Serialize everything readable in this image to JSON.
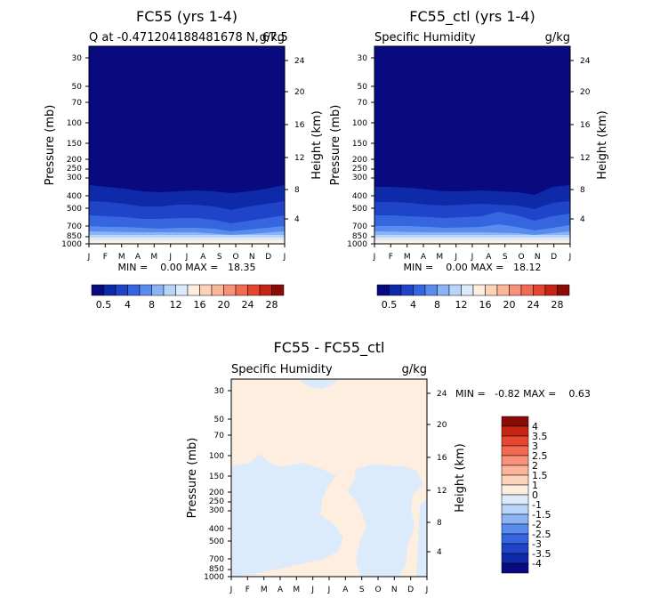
{
  "months": [
    "J",
    "F",
    "M",
    "A",
    "M",
    "J",
    "J",
    "A",
    "S",
    "O",
    "N",
    "D",
    "J"
  ],
  "pressure_ticks": [
    "30",
    "50",
    "70",
    "100",
    "150",
    "200",
    "250",
    "300",
    "400",
    "500",
    "700",
    "850",
    "1000"
  ],
  "height_ticks": [
    "24",
    "20",
    "16",
    "12",
    "8",
    "4"
  ],
  "y_label": "Pressure (mb)",
  "y2_label": "Height (km)",
  "panels": [
    {
      "title": "FC55 (yrs 1-4)",
      "left_label": "Q at -0.471204188481678 N, 67.5",
      "right_label": "g/kg",
      "min_max": "MIN =    0.00 MAX =   18.35"
    },
    {
      "title": "FC55_ctl (yrs 1-4)",
      "left_label": "Specific Humidity",
      "right_label": "g/kg",
      "min_max": "MIN =    0.00 MAX =   18.12"
    },
    {
      "title": "FC55 - FC55_ctl",
      "left_label": "Specific Humidity",
      "right_label": "g/kg",
      "min_max": "MIN =   -0.82 MAX =    0.63"
    }
  ],
  "colorbar_h": {
    "colors": [
      "#0a0a80",
      "#0e2aa8",
      "#1f44c8",
      "#3566e0",
      "#5a8cf0",
      "#8cb4f5",
      "#b8d4f8",
      "#dcebfb",
      "#fdeee0",
      "#fcd2b8",
      "#fbb59a",
      "#f8907a",
      "#f26a52",
      "#e64530",
      "#c82414",
      "#8a0c08"
    ],
    "labels": [
      "0.5",
      "4",
      "8",
      "12",
      "16",
      "20",
      "24",
      "28"
    ]
  },
  "colorbar_v": {
    "colors": [
      "#0a0a80",
      "#0e2aa8",
      "#1f44c8",
      "#3566e0",
      "#5a8cf0",
      "#8cb4f5",
      "#b8d4f8",
      "#dcebfb",
      "#fdeee0",
      "#fcd2b8",
      "#fbb59a",
      "#f8907a",
      "#f26a52",
      "#e64530",
      "#c82414",
      "#8a0c08"
    ],
    "labels": [
      "-4",
      "-3.5",
      "-3",
      "-2.5",
      "-2",
      "-1.5",
      "-1",
      "0",
      "1",
      "1.5",
      "2",
      "2.5",
      "3",
      "3.5",
      "4"
    ]
  },
  "chart_data": [
    {
      "type": "heatmap",
      "title": "FC55 (yrs 1-4)",
      "variable": "Q at -0.471204188481678 N, 67.5",
      "units": "g/kg",
      "x": [
        "J",
        "F",
        "M",
        "A",
        "M",
        "J",
        "J",
        "A",
        "S",
        "O",
        "N",
        "D",
        "J"
      ],
      "y": [
        30,
        50,
        70,
        100,
        150,
        200,
        250,
        300,
        400,
        500,
        700,
        850,
        1000
      ],
      "ylabel": "Pressure (mb)",
      "y2label": "Height (km)",
      "min": 0.0,
      "max": 18.35,
      "colorbar_levels": [
        0.5,
        4,
        8,
        12,
        16,
        20,
        24,
        28
      ]
    },
    {
      "type": "heatmap",
      "title": "FC55_ctl (yrs 1-4)",
      "variable": "Specific Humidity",
      "units": "g/kg",
      "x": [
        "J",
        "F",
        "M",
        "A",
        "M",
        "J",
        "J",
        "A",
        "S",
        "O",
        "N",
        "D",
        "J"
      ],
      "y": [
        30,
        50,
        70,
        100,
        150,
        200,
        250,
        300,
        400,
        500,
        700,
        850,
        1000
      ],
      "ylabel": "Pressure (mb)",
      "y2label": "Height (km)",
      "min": 0.0,
      "max": 18.12,
      "colorbar_levels": [
        0.5,
        4,
        8,
        12,
        16,
        20,
        24,
        28
      ]
    },
    {
      "type": "heatmap",
      "title": "FC55 - FC55_ctl",
      "variable": "Specific Humidity",
      "units": "g/kg",
      "x": [
        "J",
        "F",
        "M",
        "A",
        "M",
        "J",
        "J",
        "A",
        "S",
        "O",
        "N",
        "D",
        "J"
      ],
      "y": [
        30,
        50,
        70,
        100,
        150,
        200,
        250,
        300,
        400,
        500,
        700,
        850,
        1000
      ],
      "ylabel": "Pressure (mb)",
      "y2label": "Height (km)",
      "min": -0.82,
      "max": 0.63,
      "colorbar_levels": [
        -4,
        -3.5,
        -3,
        -2.5,
        -2,
        -1.5,
        -1,
        0,
        1,
        1.5,
        2,
        2.5,
        3,
        3.5,
        4
      ]
    }
  ]
}
